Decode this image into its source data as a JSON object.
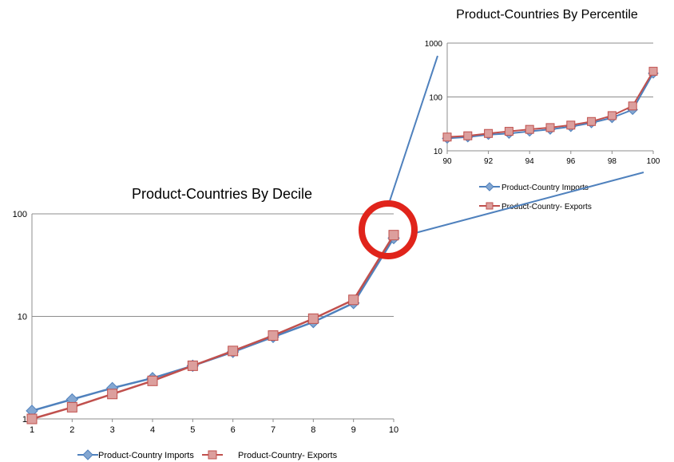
{
  "chart_data": [
    {
      "type": "line",
      "title": "Product-Countries By Decile",
      "xlabel": "",
      "ylabel": "",
      "y_scale": "log",
      "ylim": [
        1,
        100
      ],
      "xlim": [
        1,
        10
      ],
      "x": [
        1,
        2,
        3,
        4,
        5,
        6,
        7,
        8,
        9,
        10
      ],
      "x_ticks": [
        "1",
        "2",
        "3",
        "4",
        "5",
        "6",
        "7",
        "8",
        "9",
        "10"
      ],
      "y_ticks": [
        "1",
        "10",
        "100"
      ],
      "grid": "horizontal major gridlines",
      "legend_position": "bottom",
      "series": [
        {
          "name": "Product-Country Imports",
          "color": "#4f81bd",
          "marker": "diamond",
          "values": [
            1.2,
            1.55,
            2.0,
            2.5,
            3.3,
            4.5,
            6.3,
            8.8,
            13.5,
            58
          ]
        },
        {
          "name": "Product-Country- Exports",
          "color": "#c0504d",
          "marker": "square",
          "values": [
            1.0,
            1.3,
            1.75,
            2.35,
            3.3,
            4.6,
            6.5,
            9.5,
            14.5,
            62
          ]
        }
      ]
    },
    {
      "type": "line",
      "title": "Product-Countries By Percentile",
      "xlabel": "",
      "ylabel": "",
      "y_scale": "log",
      "ylim": [
        10,
        1000
      ],
      "xlim": [
        90,
        100
      ],
      "x": [
        90,
        91,
        92,
        93,
        94,
        95,
        96,
        97,
        98,
        99,
        100
      ],
      "x_ticks": [
        "90",
        "92",
        "94",
        "96",
        "98",
        "100"
      ],
      "y_ticks": [
        "10",
        "100",
        "1000"
      ],
      "grid": "horizontal major gridlines",
      "legend_position": "bottom",
      "series": [
        {
          "name": "Product-Country Imports",
          "color": "#4f81bd",
          "marker": "diamond",
          "values": [
            17,
            18,
            20,
            21,
            23,
            25,
            28,
            33,
            41,
            58,
            275
          ]
        },
        {
          "name": "Product-Country- Exports",
          "color": "#c0504d",
          "marker": "square",
          "values": [
            18,
            19,
            21,
            23,
            25,
            27,
            30,
            35,
            45,
            68,
            300
          ]
        }
      ]
    }
  ],
  "annotation": {
    "type": "zoom-callout",
    "ring_color": "#e0241b",
    "connector_color": "#4f81bd"
  }
}
